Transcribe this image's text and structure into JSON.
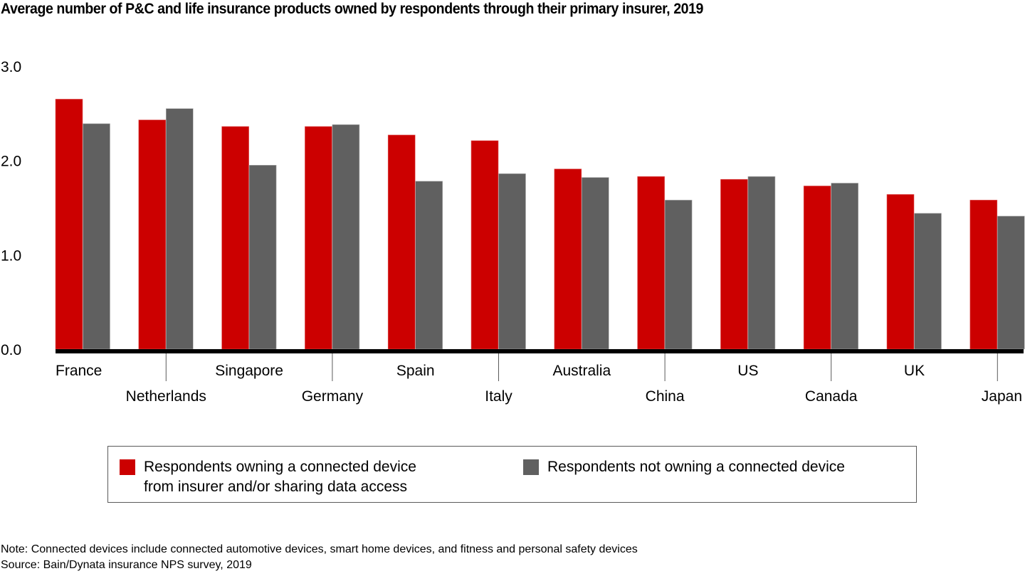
{
  "title": "Average number of P&C and life insurance products owned by respondents through their primary insurer, 2019",
  "colors": {
    "series_1": "#cc0000",
    "series_2": "#606060",
    "axis": "#000000",
    "tick": "#5a5a5a"
  },
  "chart_data": {
    "type": "bar",
    "title": "Average number of P&C and life insurance products owned by respondents through their primary insurer, 2019",
    "xlabel": "",
    "ylabel": "",
    "ylim": [
      0,
      3
    ],
    "yticks": [
      0,
      1,
      2,
      3
    ],
    "ytick_labels": [
      "0.0",
      "1.0",
      "2.0",
      "3.0"
    ],
    "grid": false,
    "legend_position": "bottom",
    "categories": [
      "France",
      "Netherlands",
      "Singapore",
      "Germany",
      "Spain",
      "Italy",
      "Australia",
      "China",
      "US",
      "Canada",
      "UK",
      "Japan"
    ],
    "series": [
      {
        "name": "Respondents owning a connected device from insurer and/or sharing data access",
        "color": "#cc0000",
        "values": [
          2.65,
          2.43,
          2.36,
          2.36,
          2.27,
          2.21,
          1.91,
          1.83,
          1.8,
          1.73,
          1.64,
          1.58
        ]
      },
      {
        "name": "Respondents not owning a connected device",
        "color": "#606060",
        "values": [
          2.39,
          2.55,
          1.95,
          2.38,
          1.78,
          1.86,
          1.82,
          1.58,
          1.83,
          1.76,
          1.44,
          1.41
        ]
      }
    ]
  },
  "legend": {
    "items": [
      {
        "label_line1": "Respondents owning a connected device",
        "label_line2": "from insurer and/or sharing data access",
        "color": "#cc0000"
      },
      {
        "label_line1": "Respondents not owning a connected device",
        "color": "#606060"
      }
    ]
  },
  "footer": {
    "note": "Note: Connected devices include connected automotive devices, smart home devices, and fitness and personal safety devices",
    "source": "Source: Bain/Dynata insurance NPS survey, 2019"
  }
}
